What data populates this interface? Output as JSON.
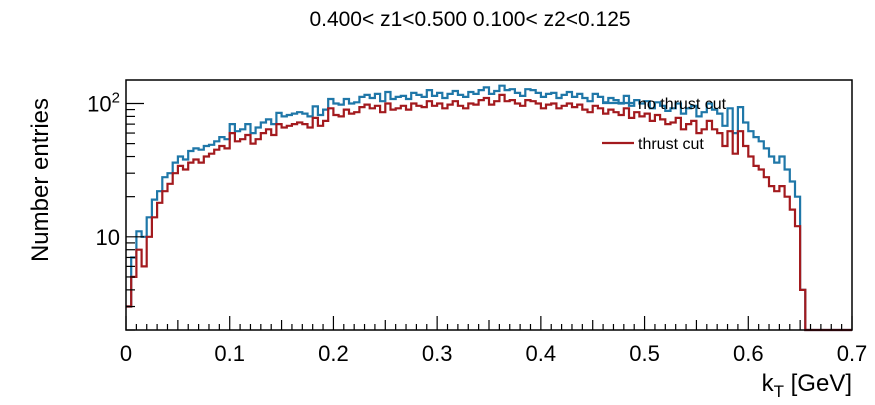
{
  "chart_data": {
    "type": "line",
    "title": "0.400< z1<0.500  0.100< z2<0.125",
    "xlabel": "k",
    "xlabel_sub": "T",
    "xlabel_unit": " [GeV]",
    "ylabel": "Number entries",
    "xlim": [
      0,
      0.7
    ],
    "ylim": [
      2,
      150
    ],
    "y_scale": "log",
    "x_ticks": [
      "0",
      "0.1",
      "0.2",
      "0.3",
      "0.4",
      "0.5",
      "0.6",
      "0.7"
    ],
    "x_tick_values": [
      0,
      0.1,
      0.2,
      0.3,
      0.4,
      0.5,
      0.6,
      0.7
    ],
    "y_ticks": [
      {
        "value": 10,
        "base": "10",
        "exp": ""
      },
      {
        "value": 100,
        "base": "10",
        "exp": "2"
      }
    ],
    "bin_width": 0.005,
    "legend_position": "top-right",
    "grid": false,
    "series": [
      {
        "name": "no thrust cut",
        "color": "#1f77a8",
        "values": [
          3,
          7,
          11,
          10,
          14,
          19,
          22,
          28,
          30,
          36,
          40,
          38,
          44,
          46,
          45,
          48,
          49,
          52,
          56,
          54,
          70,
          62,
          64,
          70,
          60,
          66,
          72,
          76,
          70,
          85,
          80,
          82,
          84,
          86,
          84,
          80,
          95,
          82,
          90,
          108,
          100,
          98,
          108,
          100,
          102,
          112,
          116,
          110,
          118,
          104,
          122,
          108,
          112,
          114,
          108,
          120,
          116,
          112,
          126,
          114,
          120,
          110,
          118,
          124,
          116,
          112,
          122,
          118,
          126,
          132,
          118,
          124,
          136,
          126,
          128,
          120,
          114,
          128,
          126,
          120,
          112,
          118,
          120,
          110,
          116,
          122,
          112,
          118,
          110,
          104,
          118,
          112,
          102,
          110,
          106,
          100,
          114,
          96,
          106,
          100,
          104,
          92,
          102,
          96,
          88,
          92,
          100,
          84,
          92,
          96,
          80,
          86,
          100,
          90,
          84,
          68,
          92,
          60,
          94,
          72,
          62,
          56,
          52,
          46,
          40,
          36,
          40,
          32,
          26,
          20,
          4,
          2,
          2,
          2,
          2,
          2,
          2,
          2,
          2,
          2
        ]
      },
      {
        "name": "thrust cut",
        "color": "#a31a1e",
        "values": [
          3,
          5,
          8,
          6,
          10,
          14,
          18,
          22,
          25,
          30,
          34,
          32,
          36,
          38,
          36,
          40,
          42,
          45,
          48,
          46,
          60,
          52,
          54,
          58,
          50,
          54,
          60,
          64,
          58,
          70,
          66,
          68,
          70,
          72,
          70,
          66,
          78,
          68,
          74,
          92,
          82,
          80,
          90,
          84,
          86,
          94,
          98,
          92,
          96,
          86,
          100,
          90,
          92,
          96,
          90,
          100,
          96,
          94,
          104,
          96,
          100,
          92,
          98,
          104,
          96,
          92,
          100,
          98,
          106,
          110,
          98,
          104,
          116,
          104,
          106,
          100,
          96,
          106,
          104,
          100,
          92,
          98,
          100,
          92,
          96,
          100,
          94,
          98,
          90,
          86,
          96,
          92,
          84,
          90,
          86,
          82,
          92,
          78,
          86,
          80,
          84,
          74,
          82,
          76,
          70,
          72,
          78,
          64,
          70,
          74,
          60,
          64,
          74,
          64,
          60,
          48,
          62,
          42,
          62,
          48,
          40,
          34,
          32,
          28,
          24,
          22,
          24,
          20,
          16,
          12,
          4,
          2,
          2,
          2,
          2,
          2,
          2,
          2,
          2,
          2
        ]
      }
    ]
  }
}
